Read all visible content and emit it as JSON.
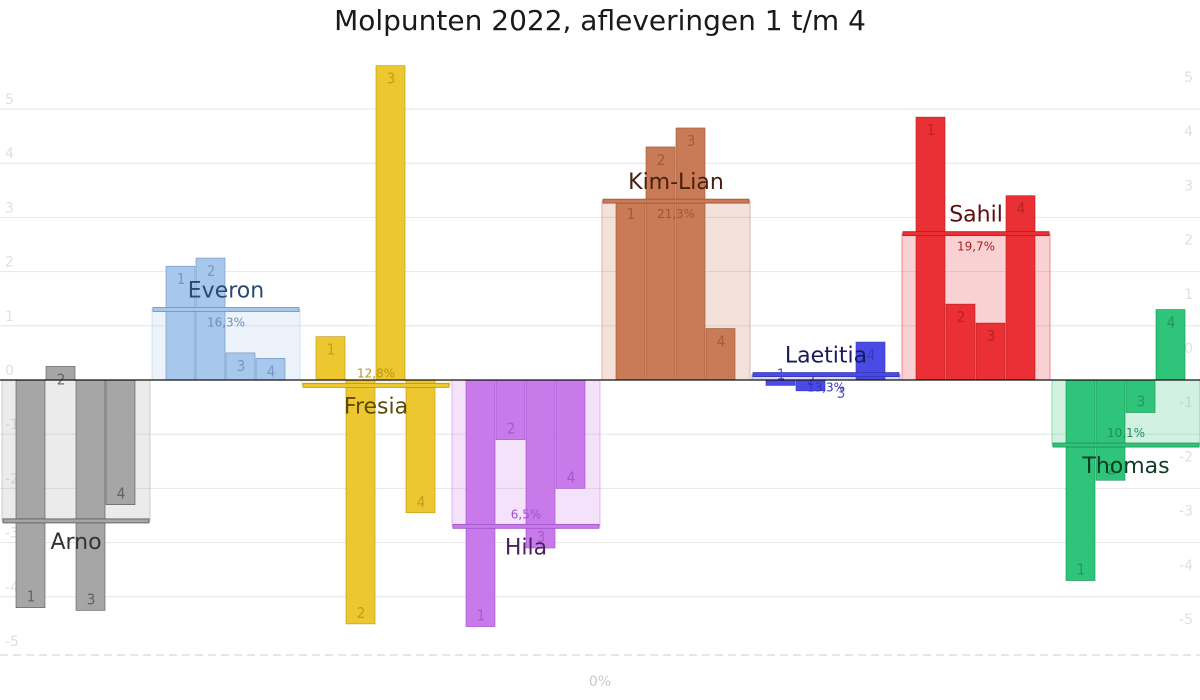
{
  "title": "Molpunten 2022, afleveringen 1 t/m 4",
  "chart_data": {
    "type": "bar",
    "title": "Molpunten 2022, afleveringen 1 t/m 4",
    "ylim": [
      -5,
      5.5
    ],
    "y_ticks": [
      "5",
      "4",
      "3",
      "2",
      "1",
      "0",
      "-1",
      "-2",
      "-3",
      "-4",
      "-5"
    ],
    "bottom_label": "0%",
    "categories": [
      "1",
      "2",
      "3",
      "4"
    ],
    "series": [
      {
        "name": "Arno",
        "values": [
          -4.2,
          0.25,
          -4.25,
          -2.3
        ],
        "average": -2.6,
        "percentage": "",
        "color": "#a6a6a6",
        "text_color": "#555555",
        "name_color": "#333333"
      },
      {
        "name": "Everon",
        "values": [
          2.1,
          2.25,
          0.5,
          0.4
        ],
        "average": 1.3,
        "percentage": "16,3%",
        "color": "#a7c8ec",
        "text_color": "#6d90bd",
        "name_color": "#2c4a6e"
      },
      {
        "name": "Fresia",
        "values": [
          0.8,
          -4.5,
          5.8,
          -2.45
        ],
        "average": -0.1,
        "percentage": "12,8%",
        "color": "#ecc72f",
        "text_color": "#b8951a",
        "name_color": "#5c4a07"
      },
      {
        "name": "Hila",
        "values": [
          -4.55,
          -1.1,
          -3.1,
          -2.0
        ],
        "average": -2.7,
        "percentage": "6,5%",
        "color": "#c879ea",
        "text_color": "#a053c8",
        "name_color": "#4a1f5e"
      },
      {
        "name": "Kim-Lian",
        "values": [
          3.3,
          4.3,
          4.65,
          0.95
        ],
        "average": 3.3,
        "percentage": "21,3%",
        "color": "#c97a57",
        "text_color": "#9e5535",
        "name_color": "#4a2110"
      },
      {
        "name": "Laetitia",
        "values": [
          -0.1,
          -0.2,
          0.0,
          0.7
        ],
        "average": 0.1,
        "percentage": "13,3%",
        "color": "#4a4ae6",
        "text_color": "#3535b8",
        "name_color": "#1a1a5e"
      },
      {
        "name": "Sahil",
        "values": [
          4.85,
          1.4,
          1.05,
          3.4
        ],
        "average": 2.7,
        "percentage": "19,7%",
        "color": "#ea2f35",
        "text_color": "#b01e22",
        "name_color": "#5e0c0e"
      },
      {
        "name": "Thomas",
        "values": [
          -3.7,
          -1.85,
          -0.6,
          1.3
        ],
        "average": -1.2,
        "percentage": "10,1%",
        "color": "#2ec479",
        "text_color": "#1e8f55",
        "name_color": "#0d3d24"
      }
    ]
  }
}
